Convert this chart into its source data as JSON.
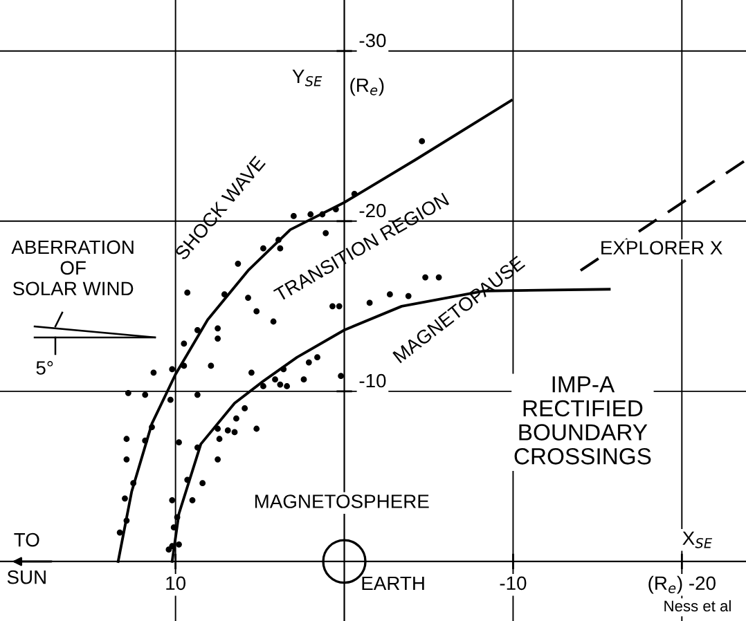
{
  "chart_data": {
    "type": "scatter",
    "xlim": [
      20.4,
      -23.8
    ],
    "ylim": [
      3.5,
      -33
    ],
    "xticks": [
      10,
      -10,
      {
        "value": -20,
        "label": "(R$_{e}$) -20"
      }
    ],
    "yticks": [
      -30,
      -20,
      -10
    ],
    "xlabel": "X$_{SE}$",
    "ylabel": "Y$_{SE}$",
    "grid": true,
    "marker": "circle",
    "series": [
      {
        "color": "#000000",
        "x": [
          5.2,
          4.2,
          7.5,
          7.5,
          8.7,
          9.5,
          7.9,
          10.2,
          9.5,
          11.3,
          5.5,
          3.6,
          2.1,
          1.6,
          0.2,
          12.8,
          11.8,
          10.3,
          8.7,
          4.8,
          4.1,
          3.8,
          3.4,
          2.4,
          5.9,
          6.4,
          7.5,
          6.9,
          6.5,
          5.2,
          11.4,
          11.8,
          12.9,
          9.8,
          8.7,
          7.4,
          12.9,
          7.5,
          12.5,
          9.3,
          8.4,
          13.0,
          10.2,
          9.0,
          12.9,
          9.9,
          13.3,
          10.1,
          10.2,
          9.8,
          10.4,
          3.0,
          2.0,
          1.3,
          0.5,
          -0.6,
          1.1,
          3.9,
          3.8,
          4.8,
          6.3,
          9.3,
          7.1,
          5.7,
          0.7,
          0.3,
          -4.6,
          -4.8,
          -5.6,
          -2.7,
          -3.8,
          -1.5
        ],
        "values": [
          -14.7,
          -14.1,
          -13.7,
          -13.1,
          -13.6,
          -12.8,
          -11.5,
          -11.3,
          -11.5,
          -11.1,
          -11.1,
          -11.3,
          -11.7,
          -12.0,
          -10.9,
          -9.9,
          -9.8,
          -9.5,
          -9.8,
          -10.3,
          -10.7,
          -10.4,
          -10.3,
          -10.7,
          -9.0,
          -8.4,
          -7.8,
          -7.7,
          -7.6,
          -7.8,
          -7.9,
          -7.1,
          -7.2,
          -7.0,
          -6.7,
          -7.2,
          -6.0,
          -6.0,
          -4.6,
          -4.8,
          -4.6,
          -3.7,
          -3.6,
          -3.6,
          -2.4,
          -2.6,
          -1.7,
          -2.0,
          -0.9,
          -1.0,
          -0.7,
          -20.3,
          -20.4,
          -20.4,
          -20.7,
          -21.6,
          -19.3,
          -18.9,
          -18.4,
          -18.4,
          -17.5,
          -15.8,
          -15.7,
          -15.5,
          -15.0,
          -15.0,
          -24.7,
          -16.7,
          -16.7,
          -15.7,
          -15.6,
          -15.2
        ]
      },
      {
        "type": "line",
        "name": "SHOCK WAVE",
        "color": "#000000",
        "marker": "none",
        "line_style": "solid",
        "x": [
          13.4,
          12.6,
          11.4,
          10,
          8.1,
          5.7,
          3.2,
          0,
          -4.2,
          -9.9
        ],
        "values": [
          0,
          -4.1,
          -8.1,
          -11,
          -14.2,
          -17.1,
          -19.5,
          -21.1,
          -23.6,
          -27.1
        ]
      },
      {
        "type": "line",
        "name": "MAGNETOPAUSE",
        "color": "#000000",
        "marker": "none",
        "line_style": "solid",
        "x": [
          10.2,
          9.8,
          8.5,
          6.5,
          4.8,
          2.8,
          0,
          -3.4,
          -8.3,
          -15.7
        ],
        "values": [
          0,
          -2.8,
          -6.9,
          -9.3,
          -10.6,
          -12.0,
          -13.6,
          -15.0,
          -15.9,
          -16.0
        ]
      },
      {
        "type": "line",
        "name": "EXPLORER X",
        "color": "#000000",
        "marker": "none",
        "line_style": "dashed",
        "x": [
          -14.0,
          -23.8
        ],
        "values": [
          -17.1,
          -23.6
        ]
      }
    ],
    "annotations": [
      "TRANSITION REGION",
      "MAGNETOSPHERE",
      "ABERRATION\nOF\nSOLAR WIND",
      "5°",
      "TO\nSUN",
      "EARTH",
      "IMP-A\nRECTIFIED\nBOUNDARY\nCROSSINGS",
      "(R$_{e}$)",
      "Ness et al"
    ]
  }
}
